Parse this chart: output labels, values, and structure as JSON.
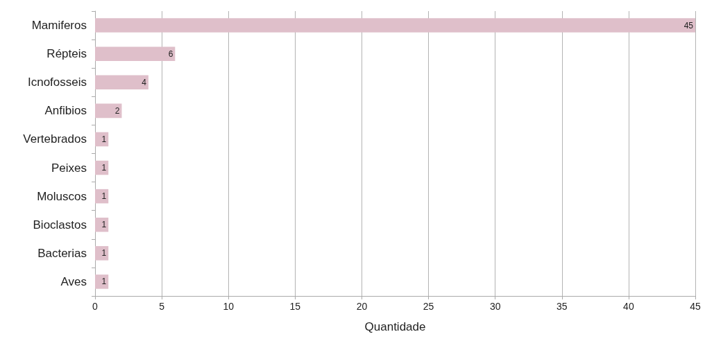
{
  "chart_data": {
    "type": "bar",
    "orientation": "horizontal",
    "xlabel": "Quantidade",
    "categories": [
      "Mamiferos",
      "Répteis",
      "Icnofosseis",
      "Anfibios",
      "Vertebrados",
      "Peixes",
      "Moluscos",
      "Bioclastos",
      "Bacterias",
      "Aves"
    ],
    "values": [
      45,
      6,
      4,
      2,
      1,
      1,
      1,
      1,
      1,
      1
    ],
    "color": "#dfbfca",
    "xlim": [
      0,
      45
    ],
    "xticks": [
      0,
      5,
      10,
      15,
      20,
      25,
      30,
      35,
      40,
      45
    ],
    "grid": "x",
    "data_labels": true
  }
}
